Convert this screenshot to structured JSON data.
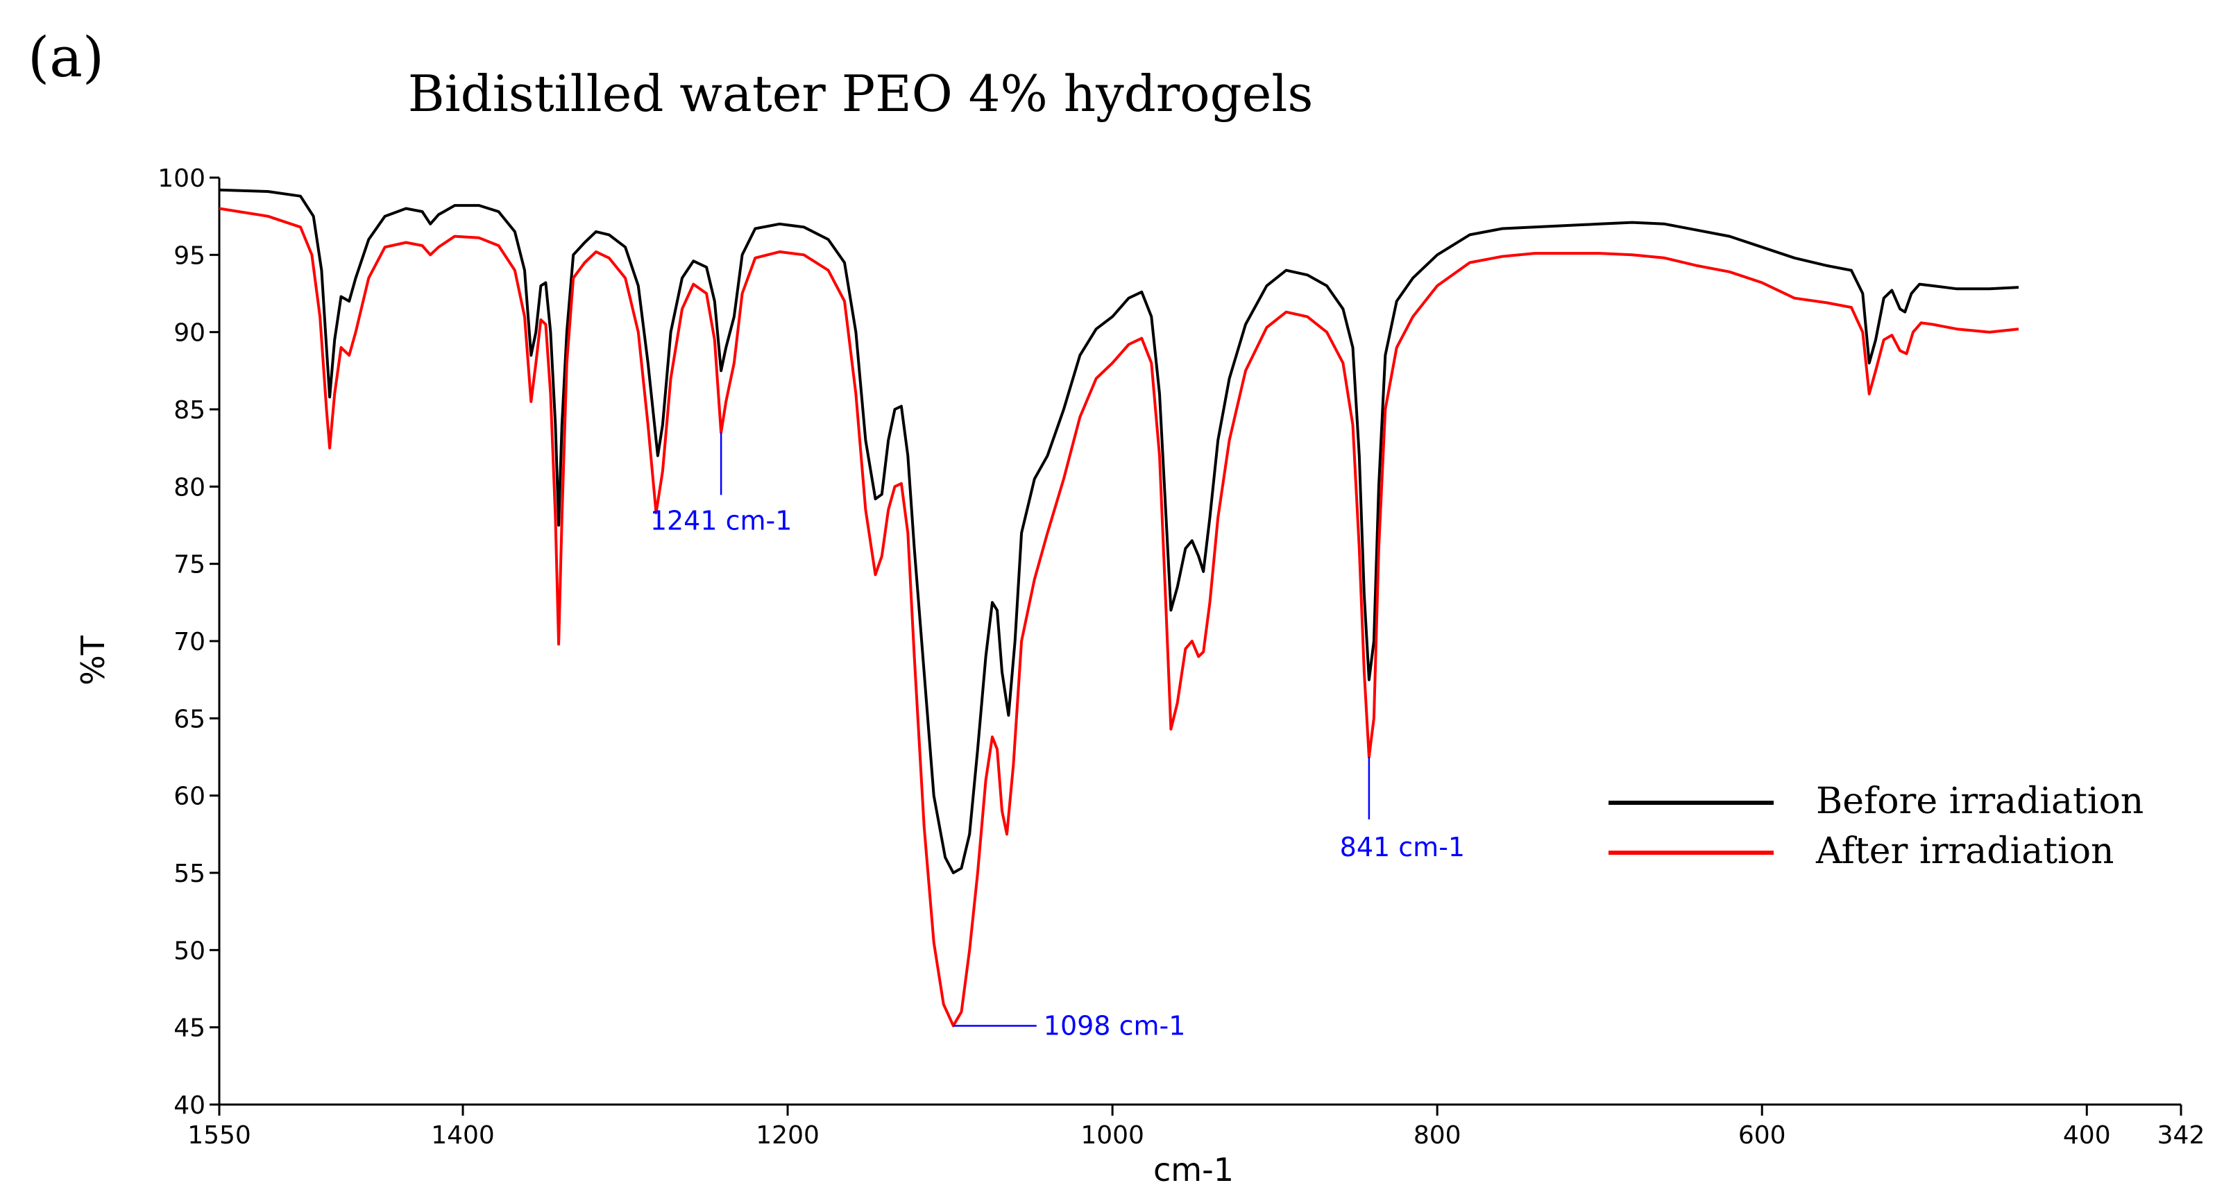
{
  "panel_label": "(a)",
  "chart_data": {
    "type": "line",
    "title": "Bidistilled water PEO 4% hydrogels",
    "xlabel": "cm-1",
    "ylabel": "%T",
    "xlim": [
      1550,
      342
    ],
    "ylim": [
      40,
      100
    ],
    "x_ticks": [
      1550,
      1400,
      1200,
      1000,
      800,
      600,
      400,
      342
    ],
    "y_ticks": [
      40,
      45,
      50,
      55,
      60,
      65,
      70,
      75,
      80,
      85,
      90,
      95,
      100
    ],
    "legend_position": "center-right",
    "series": [
      {
        "name": "Before irradiation",
        "color": "#000000",
        "points": [
          [
            1550,
            99.2
          ],
          [
            1520,
            99.1
          ],
          [
            1500,
            98.8
          ],
          [
            1492,
            97.5
          ],
          [
            1487,
            94.0
          ],
          [
            1484,
            89.0
          ],
          [
            1482,
            85.8
          ],
          [
            1479,
            89.5
          ],
          [
            1475,
            92.3
          ],
          [
            1470,
            92.0
          ],
          [
            1466,
            93.5
          ],
          [
            1458,
            96.0
          ],
          [
            1448,
            97.5
          ],
          [
            1435,
            98.0
          ],
          [
            1425,
            97.8
          ],
          [
            1420,
            97.0
          ],
          [
            1415,
            97.6
          ],
          [
            1405,
            98.2
          ],
          [
            1390,
            98.2
          ],
          [
            1378,
            97.8
          ],
          [
            1368,
            96.5
          ],
          [
            1362,
            94.0
          ],
          [
            1358,
            88.5
          ],
          [
            1355,
            90.0
          ],
          [
            1352,
            93.0
          ],
          [
            1349,
            93.2
          ],
          [
            1346,
            90.0
          ],
          [
            1343,
            84.0
          ],
          [
            1341,
            77.5
          ],
          [
            1339,
            84.0
          ],
          [
            1336,
            90.0
          ],
          [
            1332,
            95.0
          ],
          [
            1325,
            95.8
          ],
          [
            1318,
            96.5
          ],
          [
            1310,
            96.3
          ],
          [
            1300,
            95.5
          ],
          [
            1292,
            93.0
          ],
          [
            1286,
            88.0
          ],
          [
            1280,
            82.0
          ],
          [
            1277,
            84.0
          ],
          [
            1272,
            90.0
          ],
          [
            1265,
            93.5
          ],
          [
            1258,
            94.6
          ],
          [
            1250,
            94.2
          ],
          [
            1245,
            92.0
          ],
          [
            1241,
            87.5
          ],
          [
            1238,
            89.0
          ],
          [
            1233,
            91.0
          ],
          [
            1228,
            95.0
          ],
          [
            1220,
            96.7
          ],
          [
            1205,
            97.0
          ],
          [
            1190,
            96.8
          ],
          [
            1175,
            96.0
          ],
          [
            1165,
            94.5
          ],
          [
            1158,
            90.0
          ],
          [
            1152,
            83.0
          ],
          [
            1146,
            79.2
          ],
          [
            1142,
            79.5
          ],
          [
            1138,
            83.0
          ],
          [
            1134,
            85.0
          ],
          [
            1130,
            85.2
          ],
          [
            1126,
            82.0
          ],
          [
            1122,
            76.0
          ],
          [
            1116,
            68.0
          ],
          [
            1110,
            60.0
          ],
          [
            1103,
            56.0
          ],
          [
            1098,
            55.0
          ],
          [
            1093,
            55.3
          ],
          [
            1088,
            57.5
          ],
          [
            1083,
            63.0
          ],
          [
            1078,
            69.0
          ],
          [
            1074,
            72.5
          ],
          [
            1071,
            72.0
          ],
          [
            1068,
            68.0
          ],
          [
            1064,
            65.2
          ],
          [
            1060,
            70.0
          ],
          [
            1056,
            77.0
          ],
          [
            1048,
            80.5
          ],
          [
            1040,
            82.0
          ],
          [
            1030,
            85.0
          ],
          [
            1020,
            88.5
          ],
          [
            1010,
            90.2
          ],
          [
            1000,
            91.0
          ],
          [
            990,
            92.2
          ],
          [
            982,
            92.6
          ],
          [
            976,
            91.0
          ],
          [
            971,
            86.0
          ],
          [
            967,
            78.0
          ],
          [
            964,
            72.0
          ],
          [
            960,
            73.5
          ],
          [
            955,
            76.0
          ],
          [
            951,
            76.5
          ],
          [
            947,
            75.5
          ],
          [
            944,
            74.5
          ],
          [
            940,
            78.0
          ],
          [
            935,
            83.0
          ],
          [
            928,
            87.0
          ],
          [
            918,
            90.5
          ],
          [
            905,
            93.0
          ],
          [
            893,
            94.0
          ],
          [
            880,
            93.7
          ],
          [
            868,
            93.0
          ],
          [
            858,
            91.5
          ],
          [
            852,
            89.0
          ],
          [
            848,
            82.0
          ],
          [
            845,
            73.0
          ],
          [
            842,
            67.5
          ],
          [
            839,
            70.0
          ],
          [
            836,
            80.0
          ],
          [
            832,
            88.5
          ],
          [
            825,
            92.0
          ],
          [
            815,
            93.5
          ],
          [
            800,
            95.0
          ],
          [
            780,
            96.3
          ],
          [
            760,
            96.7
          ],
          [
            740,
            96.8
          ],
          [
            720,
            96.9
          ],
          [
            700,
            97.0
          ],
          [
            680,
            97.1
          ],
          [
            660,
            97.0
          ],
          [
            640,
            96.6
          ],
          [
            620,
            96.2
          ],
          [
            600,
            95.5
          ],
          [
            580,
            94.8
          ],
          [
            560,
            94.3
          ],
          [
            545,
            94.0
          ],
          [
            538,
            92.5
          ],
          [
            534,
            88.0
          ],
          [
            530,
            89.5
          ],
          [
            525,
            92.2
          ],
          [
            520,
            92.7
          ],
          [
            515,
            91.5
          ],
          [
            512,
            91.3
          ],
          [
            508,
            92.5
          ],
          [
            503,
            93.1
          ],
          [
            495,
            93.0
          ],
          [
            480,
            92.8
          ],
          [
            460,
            92.8
          ],
          [
            442,
            92.9
          ]
        ]
      },
      {
        "name": "After irradiation",
        "color": "#ff0000",
        "points": [
          [
            1550,
            98.0
          ],
          [
            1520,
            97.5
          ],
          [
            1500,
            96.8
          ],
          [
            1493,
            95.0
          ],
          [
            1488,
            91.0
          ],
          [
            1484,
            85.0
          ],
          [
            1482,
            82.5
          ],
          [
            1479,
            86.0
          ],
          [
            1475,
            89.0
          ],
          [
            1470,
            88.5
          ],
          [
            1466,
            90.0
          ],
          [
            1458,
            93.5
          ],
          [
            1448,
            95.5
          ],
          [
            1435,
            95.8
          ],
          [
            1425,
            95.6
          ],
          [
            1420,
            95.0
          ],
          [
            1415,
            95.5
          ],
          [
            1405,
            96.2
          ],
          [
            1390,
            96.1
          ],
          [
            1378,
            95.6
          ],
          [
            1368,
            94.0
          ],
          [
            1362,
            91.0
          ],
          [
            1358,
            85.5
          ],
          [
            1355,
            88.0
          ],
          [
            1352,
            90.8
          ],
          [
            1349,
            90.5
          ],
          [
            1346,
            86.0
          ],
          [
            1343,
            78.0
          ],
          [
            1341,
            69.8
          ],
          [
            1339,
            78.0
          ],
          [
            1336,
            88.0
          ],
          [
            1332,
            93.5
          ],
          [
            1325,
            94.5
          ],
          [
            1318,
            95.2
          ],
          [
            1310,
            94.8
          ],
          [
            1300,
            93.5
          ],
          [
            1292,
            90.0
          ],
          [
            1286,
            84.0
          ],
          [
            1281,
            78.3
          ],
          [
            1277,
            81.0
          ],
          [
            1272,
            87.0
          ],
          [
            1265,
            91.5
          ],
          [
            1258,
            93.1
          ],
          [
            1250,
            92.5
          ],
          [
            1245,
            89.5
          ],
          [
            1241,
            83.5
          ],
          [
            1238,
            85.5
          ],
          [
            1233,
            88.0
          ],
          [
            1228,
            92.5
          ],
          [
            1220,
            94.8
          ],
          [
            1205,
            95.2
          ],
          [
            1190,
            95.0
          ],
          [
            1175,
            94.0
          ],
          [
            1165,
            92.0
          ],
          [
            1158,
            86.0
          ],
          [
            1152,
            78.5
          ],
          [
            1146,
            74.3
          ],
          [
            1142,
            75.5
          ],
          [
            1138,
            78.5
          ],
          [
            1134,
            80.0
          ],
          [
            1130,
            80.2
          ],
          [
            1126,
            77.0
          ],
          [
            1122,
            69.0
          ],
          [
            1116,
            58.0
          ],
          [
            1110,
            50.5
          ],
          [
            1104,
            46.5
          ],
          [
            1098,
            45.1
          ],
          [
            1093,
            46.0
          ],
          [
            1088,
            50.0
          ],
          [
            1083,
            55.0
          ],
          [
            1078,
            61.0
          ],
          [
            1074,
            63.8
          ],
          [
            1071,
            63.0
          ],
          [
            1068,
            59.0
          ],
          [
            1065,
            57.5
          ],
          [
            1061,
            62.0
          ],
          [
            1056,
            70.0
          ],
          [
            1048,
            74.0
          ],
          [
            1040,
            77.0
          ],
          [
            1030,
            80.5
          ],
          [
            1020,
            84.5
          ],
          [
            1010,
            87.0
          ],
          [
            1000,
            88.0
          ],
          [
            990,
            89.2
          ],
          [
            982,
            89.6
          ],
          [
            976,
            88.0
          ],
          [
            971,
            82.0
          ],
          [
            967,
            72.0
          ],
          [
            964,
            64.3
          ],
          [
            960,
            66.0
          ],
          [
            955,
            69.5
          ],
          [
            951,
            70.0
          ],
          [
            947,
            69.0
          ],
          [
            944,
            69.3
          ],
          [
            940,
            72.5
          ],
          [
            935,
            78.0
          ],
          [
            928,
            83.0
          ],
          [
            918,
            87.5
          ],
          [
            905,
            90.3
          ],
          [
            893,
            91.3
          ],
          [
            880,
            91.0
          ],
          [
            868,
            90.0
          ],
          [
            858,
            88.0
          ],
          [
            852,
            84.0
          ],
          [
            848,
            76.0
          ],
          [
            845,
            68.0
          ],
          [
            842,
            62.5
          ],
          [
            839,
            65.0
          ],
          [
            836,
            76.0
          ],
          [
            832,
            85.0
          ],
          [
            825,
            89.0
          ],
          [
            815,
            91.0
          ],
          [
            800,
            93.0
          ],
          [
            780,
            94.5
          ],
          [
            760,
            94.9
          ],
          [
            740,
            95.1
          ],
          [
            720,
            95.1
          ],
          [
            700,
            95.1
          ],
          [
            680,
            95.0
          ],
          [
            660,
            94.8
          ],
          [
            640,
            94.3
          ],
          [
            620,
            93.9
          ],
          [
            600,
            93.2
          ],
          [
            580,
            92.2
          ],
          [
            560,
            91.9
          ],
          [
            545,
            91.6
          ],
          [
            538,
            90.0
          ],
          [
            534,
            86.0
          ],
          [
            530,
            87.5
          ],
          [
            525,
            89.5
          ],
          [
            520,
            89.8
          ],
          [
            515,
            88.8
          ],
          [
            511,
            88.6
          ],
          [
            507,
            90.0
          ],
          [
            502,
            90.6
          ],
          [
            495,
            90.5
          ],
          [
            480,
            90.2
          ],
          [
            460,
            90.0
          ],
          [
            442,
            90.2
          ]
        ]
      }
    ],
    "annotations": [
      {
        "text": "1241 cm-1",
        "x": 1241,
        "y": 83.5,
        "color": "#0000ff"
      },
      {
        "text": "1098 cm-1",
        "x": 1098,
        "y": 45.1,
        "color": "#0000ff"
      },
      {
        "text": "841 cm-1",
        "x": 842,
        "y": 62.5,
        "color": "#0000ff"
      }
    ]
  }
}
